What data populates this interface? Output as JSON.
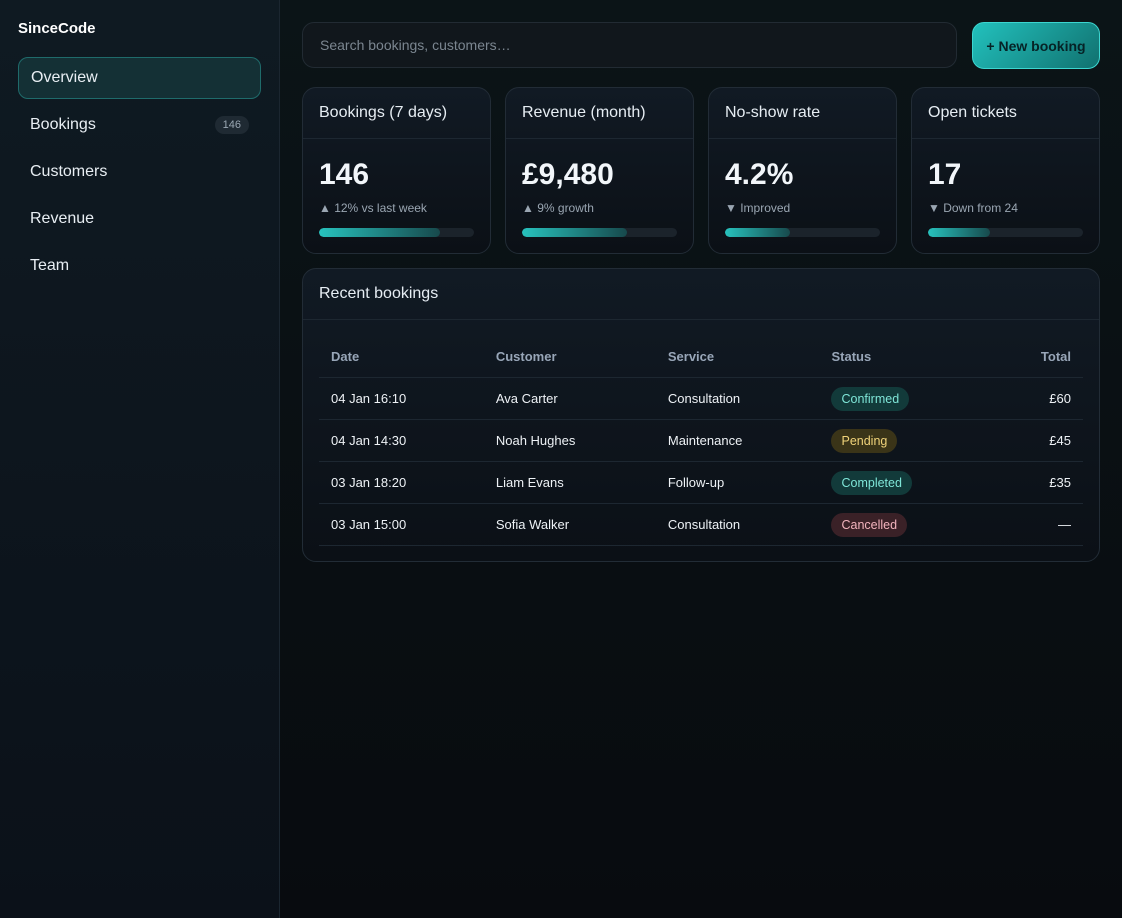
{
  "sidebar": {
    "brand": "SinceCode",
    "nav": [
      {
        "label": "Overview"
      },
      {
        "label": "Bookings",
        "badge": 146
      },
      {
        "label": "Customers"
      },
      {
        "label": "Revenue"
      },
      {
        "label": "Team"
      }
    ]
  },
  "topbar": {
    "search_placeholder": "Search bookings, customers…",
    "button": "+ New booking"
  },
  "kpis": [
    {
      "title": "Bookings (7 days)",
      "value": "146",
      "note": "▲ 12% vs last week"
    },
    {
      "title": "Revenue (month)",
      "value": "£9,480",
      "note": "▲ 9% growth"
    },
    {
      "title": "No-show rate",
      "value": "4.2%",
      "note": "▼ Improved"
    },
    {
      "title": "Open tickets",
      "value": "17",
      "note": "▼ Down from 24"
    }
  ],
  "table": {
    "title": "Recent bookings",
    "columns": [
      "Date",
      "Customer",
      "Service",
      "Status",
      "Total"
    ],
    "rows": [
      [
        "04 Jan 16:10",
        "Ava Carter",
        "Consultation",
        "Confirmed",
        "£60"
      ],
      [
        "04 Jan 14:30",
        "Noah Hughes",
        "Maintenance",
        "Pending",
        "£45"
      ],
      [
        "03 Jan 18:20",
        "Liam Evans",
        "Follow-up",
        "Completed",
        "£35"
      ],
      [
        "03 Jan 15:00",
        "Sofia Walker",
        "Consultation",
        "Cancelled",
        "—"
      ]
    ]
  }
}
